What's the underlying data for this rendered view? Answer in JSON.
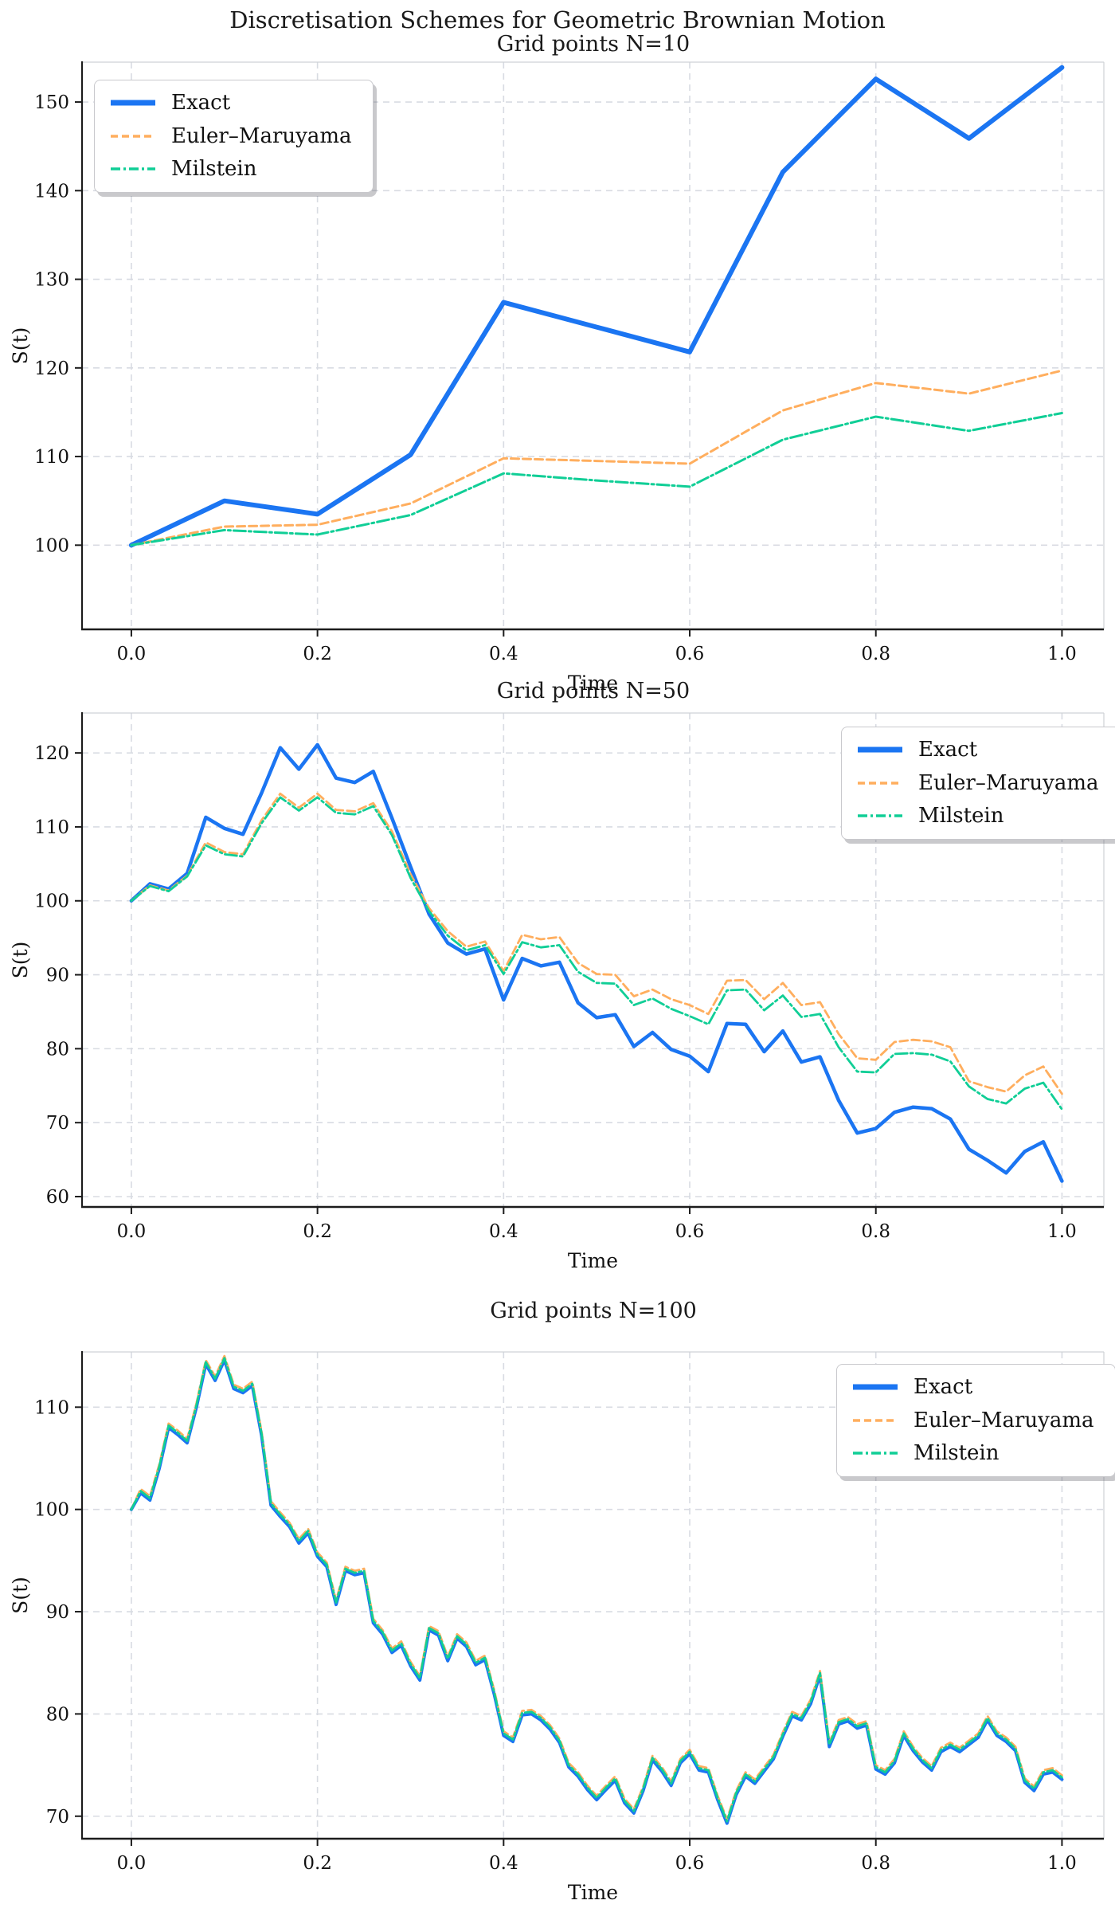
{
  "suptitle": "Discretisation Schemes for Geometric Brownian Motion",
  "palette": {
    "exact": "#1B75F2",
    "euler": "#FFAE5E",
    "milstein": "#10CE96",
    "grid": "#D8DBE2",
    "spine_dark": "#1c1c1c",
    "spine_light": "#cfd2d6",
    "text": "#111111"
  },
  "legend": {
    "items": [
      {
        "label": "Exact",
        "style": "solid",
        "color_key": "exact"
      },
      {
        "label": "Euler–Maruyama",
        "style": "dashed",
        "color_key": "euler"
      },
      {
        "label": "Milstein",
        "style": "dashdot",
        "color_key": "milstein"
      }
    ]
  },
  "chart_data": [
    {
      "type": "line",
      "title": "Grid points N=10",
      "xlabel": "Time",
      "ylabel": "S(t)",
      "xlim": [
        -0.053,
        1.045
      ],
      "ylim": [
        90.5,
        154.5
      ],
      "xtick_values": [
        0,
        0.2,
        0.4,
        0.6,
        0.8,
        1.0
      ],
      "xtick_labels": [
        "0.0",
        "0.2",
        "0.4",
        "0.6",
        "0.8",
        "1.0"
      ],
      "ytick_values": [
        100,
        110,
        120,
        130,
        140,
        150
      ],
      "grid": true,
      "legend_position": "upper-left",
      "x_start": 0,
      "x_end": 1,
      "series": [
        {
          "name": "Exact",
          "color_key": "exact",
          "style": "solid",
          "width": 6,
          "values": [
            100.0,
            105.0,
            103.5,
            110.2,
            127.4,
            124.6,
            121.8,
            142.1,
            152.6,
            145.9,
            153.9
          ]
        },
        {
          "name": "Euler–Maruyama",
          "color_key": "euler",
          "style": "dashed",
          "width": 3,
          "values": [
            100.0,
            102.1,
            102.3,
            104.7,
            109.8,
            109.5,
            109.2,
            115.2,
            118.3,
            117.1,
            119.7
          ]
        },
        {
          "name": "Milstein",
          "color_key": "milstein",
          "style": "dashdot",
          "width": 3,
          "values": [
            100.0,
            101.7,
            101.2,
            103.4,
            108.1,
            107.3,
            106.6,
            111.9,
            114.5,
            112.9,
            114.9
          ]
        }
      ]
    },
    {
      "type": "line",
      "title": "Grid points N=50",
      "xlabel": "Time",
      "ylabel": "S(t)",
      "xlim": [
        -0.053,
        1.045
      ],
      "ylim": [
        58.6,
        125.4
      ],
      "xtick_values": [
        0,
        0.2,
        0.4,
        0.6,
        0.8,
        1.0
      ],
      "xtick_labels": [
        "0.0",
        "0.2",
        "0.4",
        "0.6",
        "0.8",
        "1.0"
      ],
      "ytick_values": [
        60,
        70,
        80,
        90,
        100,
        110,
        120
      ],
      "grid": true,
      "legend_position": "upper-right",
      "x_start": 0,
      "x_end": 1,
      "series": [
        {
          "name": "Exact",
          "color_key": "exact",
          "style": "solid",
          "width": 4.5,
          "values": [
            100.0,
            102.3,
            101.6,
            103.7,
            111.3,
            109.8,
            109.0,
            114.6,
            120.7,
            117.8,
            121.1,
            116.6,
            116.0,
            117.5,
            111.2,
            104.6,
            98.2,
            94.3,
            92.8,
            93.5,
            86.6,
            92.2,
            91.2,
            91.7,
            86.2,
            84.2,
            84.6,
            80.3,
            82.2,
            79.9,
            79.0,
            76.9,
            83.4,
            83.3,
            79.6,
            82.4,
            78.2,
            78.9,
            73.0,
            68.6,
            69.2,
            71.4,
            72.1,
            71.9,
            70.5,
            66.4,
            64.9,
            63.2,
            66.1,
            67.4,
            62.1
          ]
        },
        {
          "name": "Euler–Maruyama",
          "color_key": "euler",
          "style": "dashed",
          "width": 2.8,
          "values": [
            100.0,
            102.1,
            101.4,
            103.4,
            107.9,
            106.6,
            106.3,
            110.9,
            114.5,
            112.6,
            114.5,
            112.3,
            112.1,
            113.2,
            109.4,
            103.6,
            99.0,
            95.9,
            93.8,
            94.5,
            90.5,
            95.4,
            94.8,
            95.1,
            91.6,
            90.1,
            90.0,
            87.1,
            88.0,
            86.7,
            85.9,
            84.7,
            89.2,
            89.3,
            86.7,
            88.9,
            85.9,
            86.3,
            82.0,
            78.7,
            78.5,
            80.9,
            81.2,
            81.0,
            80.2,
            75.6,
            74.8,
            74.2,
            76.4,
            77.6,
            73.9
          ]
        },
        {
          "name": "Milstein",
          "color_key": "milstein",
          "style": "dashdot",
          "width": 2.8,
          "values": [
            100.0,
            102.0,
            101.3,
            103.3,
            107.5,
            106.3,
            106.0,
            110.5,
            114.0,
            112.2,
            114.0,
            111.9,
            111.7,
            112.8,
            108.9,
            103.1,
            98.6,
            95.3,
            93.3,
            94.0,
            90.1,
            94.4,
            93.7,
            94.0,
            90.4,
            88.9,
            88.8,
            85.9,
            86.8,
            85.4,
            84.4,
            83.3,
            87.9,
            88.0,
            85.2,
            87.2,
            84.3,
            84.7,
            80.2,
            76.9,
            76.8,
            79.3,
            79.4,
            79.2,
            78.3,
            74.9,
            73.2,
            72.6,
            74.6,
            75.4,
            71.8
          ]
        }
      ]
    },
    {
      "type": "line",
      "title": "Grid points N=100",
      "xlabel": "Time",
      "ylabel": "S(t)",
      "xlim": [
        -0.053,
        1.045
      ],
      "ylim": [
        67.8,
        115.4
      ],
      "xtick_values": [
        0,
        0.2,
        0.4,
        0.6,
        0.8,
        1.0
      ],
      "xtick_labels": [
        "0.0",
        "0.2",
        "0.4",
        "0.6",
        "0.8",
        "1.0"
      ],
      "ytick_values": [
        70,
        80,
        90,
        100,
        110
      ],
      "grid": true,
      "legend_position": "upper-right",
      "x_start": 0,
      "x_end": 1,
      "series": [
        {
          "name": "Exact",
          "color_key": "exact",
          "style": "solid",
          "width": 4,
          "values": [
            100.0,
            101.6,
            100.9,
            104.0,
            108.0,
            107.3,
            106.5,
            110.0,
            114.2,
            112.6,
            114.6,
            111.8,
            111.4,
            112.1,
            107.2,
            100.4,
            99.3,
            98.3,
            96.7,
            97.7,
            95.4,
            94.4,
            90.7,
            94.0,
            93.6,
            93.8,
            88.9,
            87.8,
            86.0,
            86.7,
            84.7,
            83.3,
            88.2,
            87.7,
            85.2,
            87.4,
            86.6,
            84.8,
            85.3,
            81.9,
            77.9,
            77.3,
            79.9,
            80.0,
            79.4,
            78.5,
            77.2,
            74.8,
            73.9,
            72.6,
            71.6,
            72.6,
            73.5,
            71.3,
            70.3,
            72.5,
            75.5,
            74.4,
            73.0,
            75.2,
            76.1,
            74.5,
            74.3,
            71.6,
            69.3,
            72.1,
            73.9,
            73.2,
            74.4,
            75.6,
            77.8,
            79.8,
            79.4,
            81.0,
            83.8,
            76.8,
            79.0,
            79.3,
            78.6,
            78.9,
            74.6,
            74.1,
            75.2,
            77.9,
            76.4,
            75.3,
            74.5,
            76.3,
            76.8,
            76.3,
            77.0,
            77.7,
            79.4,
            77.9,
            77.3,
            76.4,
            73.3,
            72.5,
            74.1,
            74.3,
            73.6
          ]
        },
        {
          "name": "Euler–Maruyama",
          "color_key": "euler",
          "style": "dashed",
          "width": 2.8,
          "values": [
            100.0,
            102.0,
            101.3,
            104.4,
            108.4,
            107.7,
            106.9,
            110.4,
            114.6,
            113.0,
            115.0,
            112.2,
            111.8,
            112.5,
            107.6,
            100.8,
            99.7,
            98.7,
            97.1,
            98.1,
            95.8,
            94.8,
            91.1,
            94.4,
            94.0,
            94.2,
            89.3,
            88.2,
            86.4,
            87.1,
            85.1,
            83.7,
            88.6,
            88.1,
            85.6,
            87.8,
            87.0,
            85.2,
            85.7,
            82.3,
            78.3,
            77.7,
            80.3,
            80.4,
            79.8,
            78.9,
            77.6,
            75.2,
            74.3,
            73.0,
            72.0,
            73.0,
            73.9,
            71.7,
            70.7,
            72.9,
            75.9,
            74.8,
            73.4,
            75.6,
            76.5,
            74.9,
            74.7,
            72.0,
            69.7,
            72.5,
            74.3,
            73.6,
            74.8,
            76.0,
            78.2,
            80.2,
            79.8,
            81.4,
            84.2,
            77.2,
            79.4,
            79.7,
            79.0,
            79.3,
            75.0,
            74.5,
            75.6,
            78.3,
            76.8,
            75.7,
            74.9,
            76.7,
            77.2,
            76.7,
            77.4,
            78.1,
            79.8,
            78.3,
            77.7,
            76.8,
            73.7,
            72.9,
            74.5,
            74.7,
            74.0
          ]
        },
        {
          "name": "Milstein",
          "color_key": "milstein",
          "style": "dashdot",
          "width": 2.8,
          "values": [
            100.0,
            101.8,
            101.1,
            104.2,
            108.2,
            107.5,
            106.7,
            110.2,
            114.4,
            112.8,
            114.8,
            112.0,
            111.6,
            112.3,
            107.4,
            100.6,
            99.5,
            98.5,
            96.9,
            97.9,
            95.6,
            94.6,
            90.9,
            94.2,
            93.8,
            94.0,
            89.1,
            88.0,
            86.2,
            86.9,
            84.9,
            83.5,
            88.4,
            87.9,
            85.4,
            87.6,
            86.8,
            85.0,
            85.5,
            82.1,
            78.1,
            77.5,
            80.1,
            80.2,
            79.6,
            78.7,
            77.4,
            75.0,
            74.1,
            72.8,
            71.8,
            72.8,
            73.7,
            71.5,
            70.5,
            72.7,
            75.7,
            74.6,
            73.2,
            75.4,
            76.3,
            74.7,
            74.5,
            71.8,
            69.5,
            72.3,
            74.1,
            73.4,
            74.6,
            75.8,
            78.0,
            80.0,
            79.6,
            81.2,
            84.0,
            77.0,
            79.2,
            79.5,
            78.8,
            79.1,
            74.8,
            74.3,
            75.4,
            78.1,
            76.6,
            75.5,
            74.7,
            76.5,
            77.0,
            76.5,
            77.2,
            77.9,
            79.6,
            78.1,
            77.5,
            76.6,
            73.5,
            72.7,
            74.3,
            74.5,
            73.8
          ]
        }
      ]
    }
  ]
}
